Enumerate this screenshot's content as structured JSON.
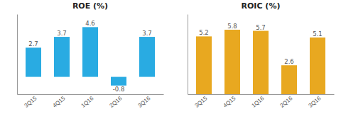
{
  "chart_data": [
    {
      "type": "bar",
      "title": "ROE (%)",
      "categories": [
        "3Q15",
        "4Q15",
        "1Q16",
        "2Q16",
        "3Q16"
      ],
      "values": [
        2.7,
        3.7,
        4.6,
        -0.8,
        3.7
      ],
      "color": "#29ABE2",
      "ylim": [
        -1.6,
        5.8
      ],
      "data_labels": true,
      "tick_labels": "x",
      "grid": false
    },
    {
      "type": "bar",
      "title": "ROIC (%)",
      "categories": [
        "3Q15",
        "4Q15",
        "1Q16",
        "2Q16",
        "3Q16"
      ],
      "values": [
        5.2,
        5.8,
        5.7,
        2.6,
        5.1
      ],
      "color": "#E8A820",
      "ylim": [
        0,
        7.2
      ],
      "data_labels": true,
      "tick_labels": "x",
      "grid": false
    }
  ]
}
